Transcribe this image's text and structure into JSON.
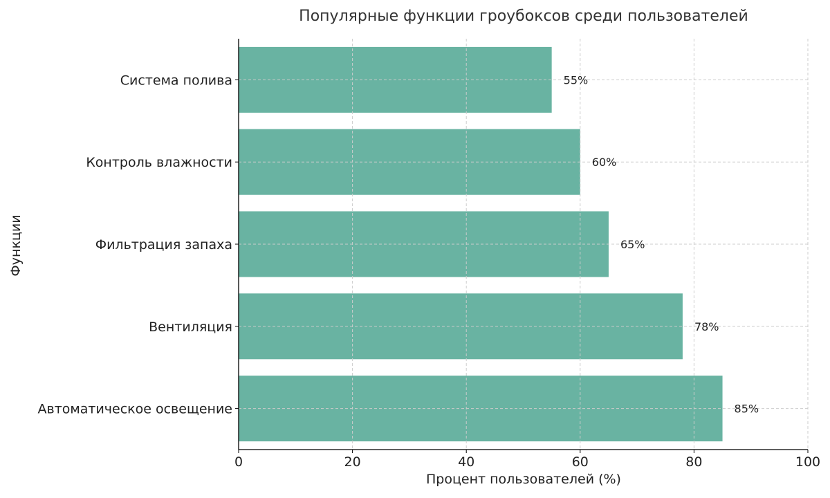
{
  "chart_data": {
    "type": "bar",
    "orientation": "horizontal",
    "title": "Популярные функции гроубоксов среди пользователей",
    "xlabel": "Процент пользователей (%)",
    "ylabel": "Функции",
    "categories": [
      "Автоматическое освещение",
      "Вентиляция",
      "Фильтрация запаха",
      "Контроль влажности",
      "Система полива"
    ],
    "values": [
      85,
      78,
      65,
      60,
      55
    ],
    "value_labels": [
      "85%",
      "78%",
      "65%",
      "60%",
      "55%"
    ],
    "xlim": [
      0,
      100
    ],
    "xticks": [
      0,
      20,
      40,
      60,
      80,
      100
    ],
    "xtick_labels": [
      "0",
      "20",
      "40",
      "60",
      "80",
      "100"
    ],
    "grid": true,
    "bar_color": "#69b3a2",
    "grid_color": "#cccccc",
    "text_color": "#222222"
  }
}
